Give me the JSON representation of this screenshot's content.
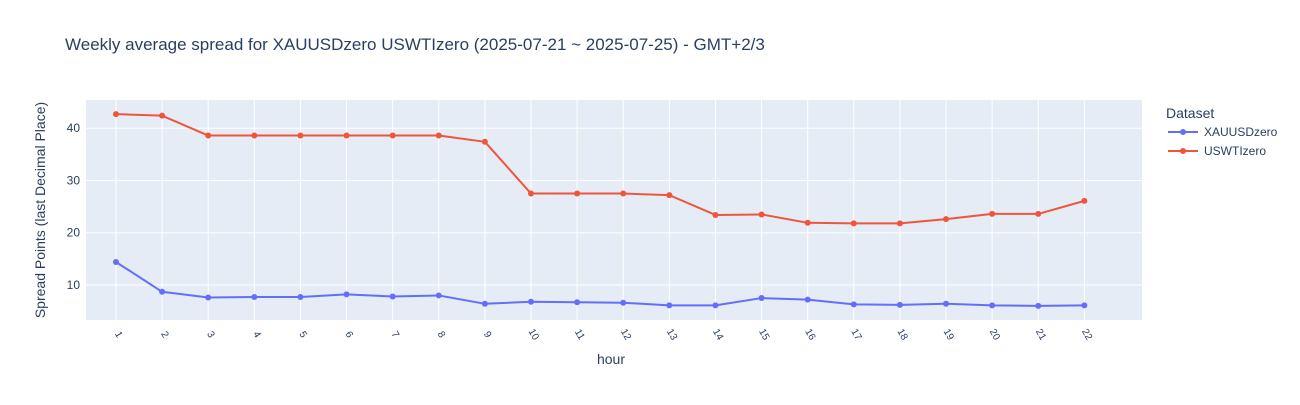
{
  "chart_data": {
    "type": "line",
    "title": "Weekly average spread for  XAUUSDzero USWTIzero (2025-07-21 ~ 2025-07-25) - GMT+2/3",
    "xlabel": "hour",
    "ylabel": "Spread Points (last Decimal Place)",
    "x": [
      1,
      2,
      3,
      4,
      5,
      6,
      7,
      8,
      9,
      10,
      11,
      12,
      13,
      14,
      15,
      16,
      17,
      18,
      19,
      20,
      21,
      22
    ],
    "x_tick_labels": [
      "1",
      "2",
      "3",
      "4",
      "5",
      "6",
      "7",
      "8",
      "9",
      "10",
      "11",
      "12",
      "13",
      "14",
      "15",
      "16",
      "17",
      "18",
      "19",
      "20",
      "21",
      "22"
    ],
    "xlim": [
      0.35,
      23.25
    ],
    "y_ticks": [
      10,
      20,
      30,
      40
    ],
    "y_tick_labels": [
      "10",
      "20",
      "30",
      "40"
    ],
    "ylim": [
      3.3,
      45.4
    ],
    "grid": true,
    "legend": {
      "title": "Dataset",
      "position": "top-right"
    },
    "series": [
      {
        "name": "XAUUSDzero",
        "color": "#636efa",
        "values": [
          14.4,
          8.7,
          7.6,
          7.7,
          7.7,
          8.2,
          7.8,
          8.0,
          6.4,
          6.8,
          6.7,
          6.6,
          6.1,
          6.1,
          7.5,
          7.2,
          6.3,
          6.2,
          6.4,
          6.1,
          6.0,
          6.1
        ]
      },
      {
        "name": "USWTIzero",
        "color": "#ef553b",
        "values": [
          42.7,
          42.4,
          38.6,
          38.6,
          38.6,
          38.6,
          38.6,
          38.6,
          37.4,
          27.5,
          27.5,
          27.5,
          27.2,
          23.4,
          23.5,
          21.9,
          21.8,
          21.8,
          22.6,
          23.6,
          23.6,
          26.1
        ]
      }
    ]
  }
}
